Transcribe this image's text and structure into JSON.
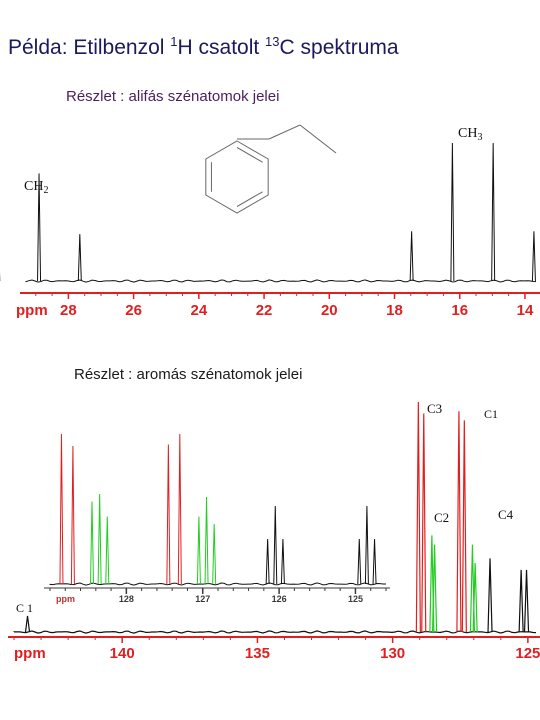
{
  "title": {
    "prefix": "Példa: Etilbenzol ",
    "sup1": "1",
    "mid": "H csatolt ",
    "sup2": "13",
    "suffix": "C spektruma"
  },
  "captions": {
    "aliphatic": "Részlet : alifás szénatomok jelei",
    "aromatic": "Részlet :  aromás szénatomok jelei"
  },
  "colors": {
    "trace": "#111111",
    "red": "#e02020",
    "green": "#22cc22",
    "axis": "#e02020",
    "structure": "#666666"
  },
  "chart_data": [
    {
      "type": "line",
      "name": "aliphatic",
      "xlabel": "ppm",
      "xlim": [
        29.3,
        13.6
      ],
      "ticks": [
        28,
        26,
        24,
        22,
        20,
        18,
        16,
        14
      ],
      "peak_labels": [
        {
          "text": "CH2",
          "base": "CH",
          "sub": "2",
          "x": 28.9
        },
        {
          "text": "CH3",
          "base": "CH",
          "sub": "3",
          "x": 15.6
        }
      ],
      "multiplets": [
        {
          "center": 28.9,
          "spacing": 1.25,
          "heights": [
            0.34,
            0.78,
            0.34
          ],
          "color": "trace"
        },
        {
          "center": 15.6,
          "spacing": 1.25,
          "heights": [
            0.36,
            1.0,
            1.0,
            0.36
          ],
          "color": "trace"
        }
      ]
    },
    {
      "type": "line",
      "name": "aromatic",
      "xlabel": "ppm",
      "xlim": [
        144.0,
        124.7
      ],
      "ticks": [
        140,
        135,
        130,
        125
      ],
      "peak_labels": [
        {
          "text": "C 1",
          "base": "C 1",
          "sub": "",
          "x": 144.0
        },
        {
          "text": "C3",
          "base": "C3",
          "sub": "",
          "x": 128.8
        },
        {
          "text": "C2",
          "base": "C2",
          "sub": "",
          "x": 128.1
        },
        {
          "text": "C1",
          "base": "C1",
          "sub": "",
          "x": 126.9
        },
        {
          "text": "C4",
          "base": "C4",
          "sub": "",
          "x": 125.6
        }
      ],
      "peaks": [
        {
          "x": 143.5,
          "h": 0.07,
          "color": "trace"
        },
        {
          "x": 129.05,
          "h": 1.0,
          "color": "red"
        },
        {
          "x": 128.85,
          "h": 0.95,
          "color": "red"
        },
        {
          "x": 128.55,
          "h": 0.42,
          "color": "green"
        },
        {
          "x": 128.45,
          "h": 0.38,
          "color": "green"
        },
        {
          "x": 127.55,
          "h": 0.96,
          "color": "red"
        },
        {
          "x": 127.35,
          "h": 0.92,
          "color": "red"
        },
        {
          "x": 127.05,
          "h": 0.38,
          "color": "green"
        },
        {
          "x": 126.95,
          "h": 0.3,
          "color": "green"
        },
        {
          "x": 126.4,
          "h": 0.32,
          "color": "trace"
        },
        {
          "x": 125.25,
          "h": 0.27,
          "color": "trace"
        },
        {
          "x": 125.05,
          "h": 0.27,
          "color": "trace"
        }
      ],
      "inset": {
        "xlabel": "ppm",
        "xlim": [
          129.0,
          124.6
        ],
        "ticks": [
          128,
          127,
          126,
          125
        ],
        "peaks": [
          {
            "x": 128.85,
            "h": 1.0,
            "color": "red"
          },
          {
            "x": 128.7,
            "h": 0.92,
            "color": "red"
          },
          {
            "x": 128.45,
            "h": 0.55,
            "color": "green"
          },
          {
            "x": 128.35,
            "h": 0.6,
            "color": "green"
          },
          {
            "x": 128.25,
            "h": 0.45,
            "color": "green"
          },
          {
            "x": 127.45,
            "h": 0.93,
            "color": "red"
          },
          {
            "x": 127.3,
            "h": 1.0,
            "color": "red"
          },
          {
            "x": 127.05,
            "h": 0.45,
            "color": "green"
          },
          {
            "x": 126.95,
            "h": 0.58,
            "color": "green"
          },
          {
            "x": 126.85,
            "h": 0.4,
            "color": "green"
          },
          {
            "x": 126.15,
            "h": 0.3,
            "color": "trace"
          },
          {
            "x": 126.05,
            "h": 0.52,
            "color": "trace"
          },
          {
            "x": 125.95,
            "h": 0.3,
            "color": "trace"
          },
          {
            "x": 124.95,
            "h": 0.3,
            "color": "trace"
          },
          {
            "x": 124.85,
            "h": 0.52,
            "color": "trace"
          },
          {
            "x": 124.75,
            "h": 0.3,
            "color": "trace"
          }
        ]
      }
    }
  ]
}
